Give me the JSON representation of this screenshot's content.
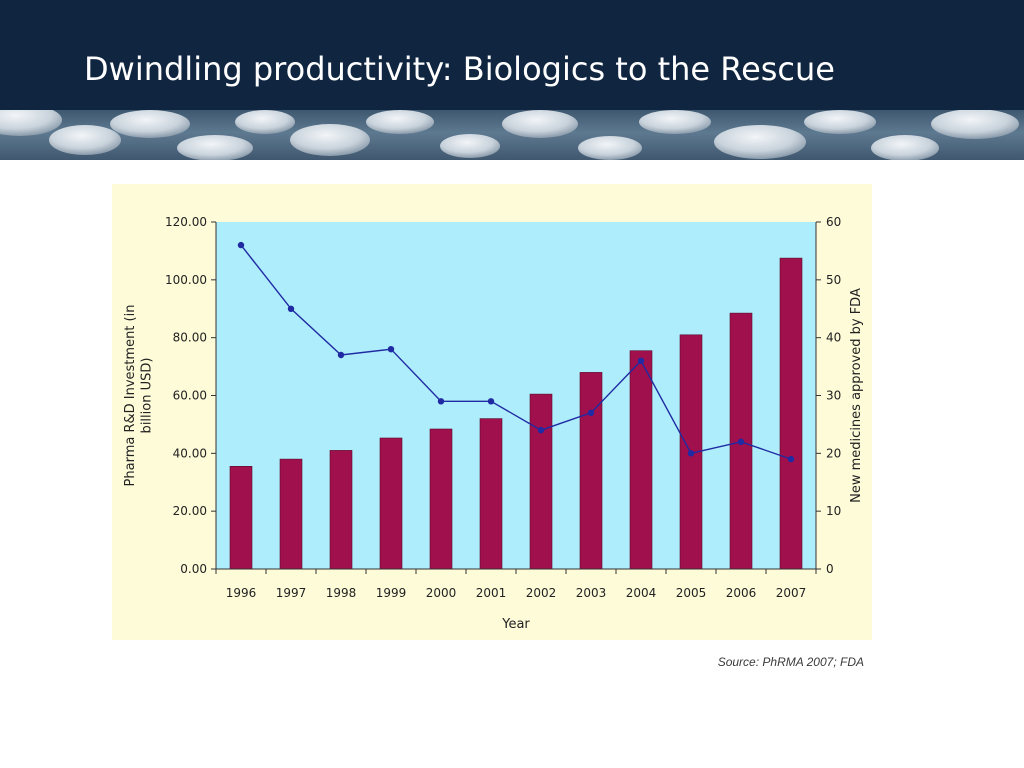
{
  "slide": {
    "title": "Dwindling productivity: Biologics to the Rescue",
    "source": "Source: PhRMA 2007; FDA"
  },
  "colors": {
    "title_bar": "#0f2540",
    "plot_area": "#aeeefc",
    "chart_background": "#fdfbd8",
    "bars": "#a0104d",
    "line": "#1f2aa3"
  },
  "chart_data": {
    "type": "bar",
    "categories": [
      "1996",
      "1997",
      "1998",
      "1999",
      "2000",
      "2001",
      "2002",
      "2003",
      "2004",
      "2005",
      "2006",
      "2007"
    ],
    "xlabel": "Year",
    "ylabel": "Pharma R&D Investment (in billion USD)",
    "ylabel_lines": [
      "Pharma R&D Investment (in",
      "billion USD)"
    ],
    "y2label": "New medicines approved by FDA",
    "ylim": [
      0,
      120
    ],
    "y2lim": [
      0,
      60
    ],
    "yticks": [
      "0.00",
      "20.00",
      "40.00",
      "60.00",
      "80.00",
      "100.00",
      "120.00"
    ],
    "y2ticks": [
      "0",
      "10",
      "20",
      "30",
      "40",
      "50",
      "60"
    ],
    "grid": false,
    "legend": "none",
    "series": [
      {
        "type": "bar",
        "axis": "left",
        "values": [
          35.5,
          38,
          41,
          45.3,
          48.4,
          52,
          60.5,
          68,
          75.5,
          81,
          88.5,
          107.5
        ]
      },
      {
        "type": "line",
        "axis": "right",
        "values": [
          56,
          45,
          37,
          38,
          29,
          29,
          24,
          27,
          36,
          20,
          22,
          19
        ]
      }
    ]
  }
}
